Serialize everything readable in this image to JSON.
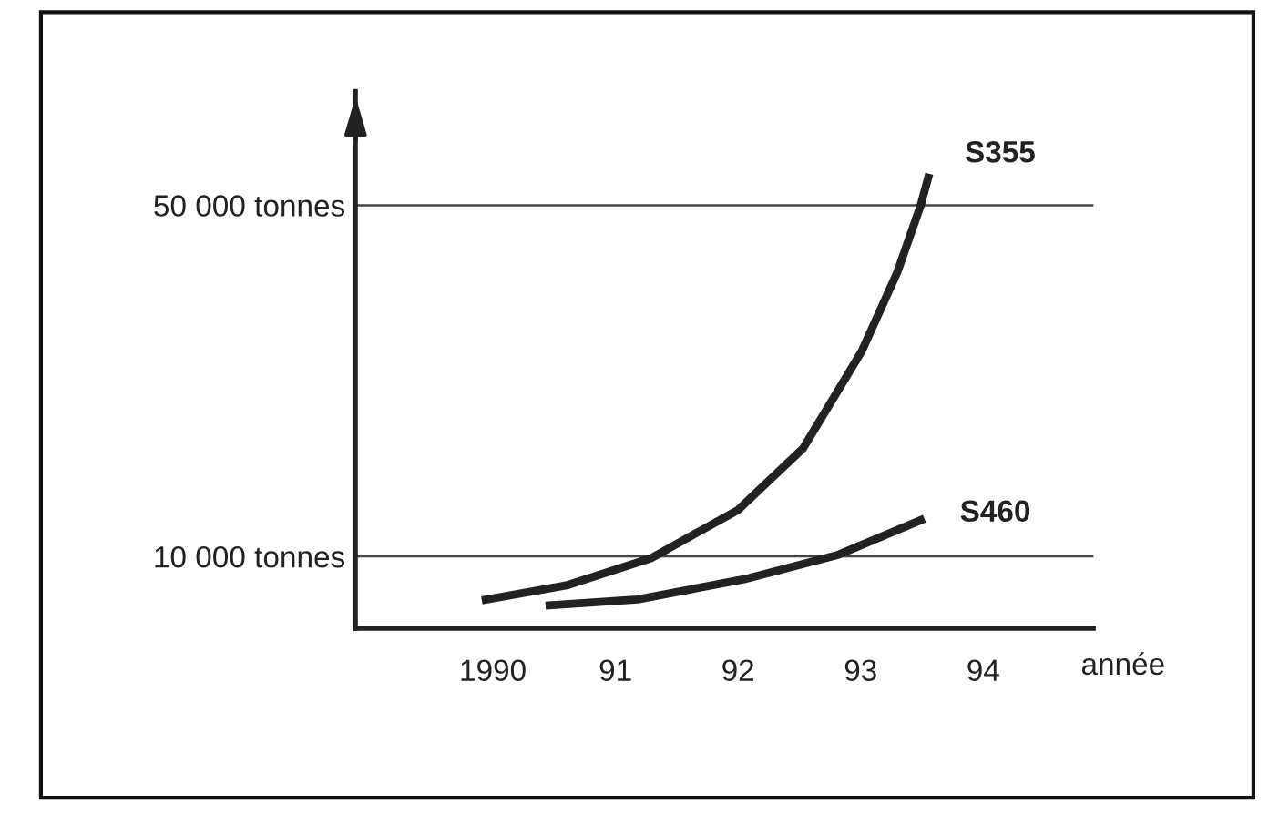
{
  "chart_data": {
    "type": "line",
    "xlabel": "année",
    "xlim": [
      1988.88,
      1994.9
    ],
    "xticks": [
      {
        "value": 1990,
        "label": "1990"
      },
      {
        "value": 1991,
        "label": "91"
      },
      {
        "value": 1992,
        "label": "92"
      },
      {
        "value": 1993,
        "label": "93"
      },
      {
        "value": 1994,
        "label": "94"
      }
    ],
    "ylim": [
      1800,
      63000
    ],
    "yticks": [
      {
        "value": 10000,
        "label": "10 000 tonnes"
      },
      {
        "value": 50000,
        "label": "50 000 tonnes"
      }
    ],
    "grid": "y",
    "marker": "none",
    "line_style": "solid",
    "legend": false,
    "series": [
      {
        "name": "S355",
        "color": "#222222",
        "x": [
          1989.91,
          1990.6,
          1991.29,
          1992.0,
          1992.53,
          1993.01,
          1993.3,
          1993.49,
          1993.56
        ],
        "values": [
          5000,
          6700,
          9800,
          15300,
          22300,
          33400,
          42400,
          50000,
          53600
        ]
      },
      {
        "name": "S460",
        "color": "#222222",
        "x": [
          1990.43,
          1991.18,
          1992.05,
          1992.82,
          1993.52
        ],
        "values": [
          4400,
          5100,
          7400,
          10200,
          14300
        ]
      }
    ]
  }
}
